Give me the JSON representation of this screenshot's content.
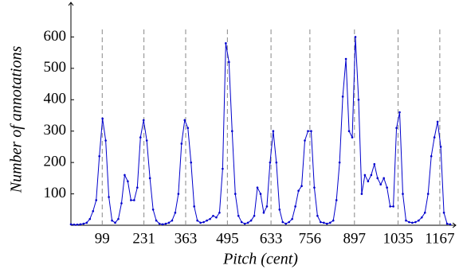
{
  "chart_data": {
    "type": "line",
    "x_label": "Pitch (cent)",
    "y_label": "Number of annotations",
    "x": [
      0,
      10,
      20,
      30,
      40,
      50,
      60,
      70,
      80,
      90,
      100,
      110,
      120,
      130,
      140,
      150,
      160,
      170,
      180,
      190,
      200,
      210,
      220,
      230,
      240,
      250,
      260,
      270,
      280,
      290,
      300,
      310,
      320,
      330,
      340,
      350,
      360,
      370,
      380,
      390,
      400,
      410,
      420,
      430,
      440,
      450,
      460,
      470,
      480,
      490,
      500,
      510,
      520,
      530,
      540,
      550,
      560,
      570,
      580,
      590,
      600,
      610,
      620,
      630,
      640,
      650,
      660,
      670,
      680,
      690,
      700,
      710,
      720,
      730,
      740,
      750,
      760,
      770,
      780,
      790,
      800,
      810,
      820,
      830,
      840,
      850,
      860,
      870,
      880,
      890,
      900,
      910,
      920,
      930,
      940,
      950,
      960,
      970,
      980,
      990,
      1000,
      1010,
      1020,
      1030,
      1040,
      1050,
      1060,
      1070,
      1080,
      1090,
      1100,
      1110,
      1120,
      1130,
      1140,
      1150,
      1160,
      1170,
      1180,
      1190,
      1200
    ],
    "series": [
      {
        "name": "annotations",
        "color": "#0000cc",
        "values": [
          3,
          2,
          2,
          3,
          5,
          8,
          20,
          45,
          80,
          220,
          340,
          270,
          90,
          15,
          8,
          20,
          70,
          160,
          140,
          80,
          80,
          120,
          280,
          335,
          270,
          150,
          50,
          15,
          5,
          3,
          5,
          8,
          15,
          40,
          100,
          260,
          335,
          310,
          200,
          60,
          15,
          8,
          10,
          15,
          20,
          30,
          25,
          40,
          180,
          580,
          520,
          300,
          100,
          30,
          10,
          5,
          8,
          15,
          30,
          120,
          100,
          40,
          60,
          200,
          300,
          200,
          50,
          10,
          5,
          10,
          20,
          60,
          110,
          125,
          270,
          300,
          300,
          120,
          30,
          10,
          8,
          5,
          8,
          15,
          80,
          200,
          410,
          530,
          300,
          280,
          600,
          400,
          100,
          160,
          140,
          160,
          195,
          150,
          130,
          150,
          120,
          60,
          60,
          310,
          360,
          100,
          15,
          10,
          8,
          10,
          15,
          25,
          40,
          100,
          220,
          280,
          330,
          250,
          40,
          5,
          3
        ]
      }
    ],
    "xlim": [
      0,
      1200
    ],
    "ylim": [
      0,
      700
    ],
    "xticks": [
      99,
      231,
      363,
      495,
      633,
      756,
      897,
      1035,
      1167
    ],
    "yticks": [
      100,
      200,
      300,
      400,
      500,
      600
    ]
  }
}
